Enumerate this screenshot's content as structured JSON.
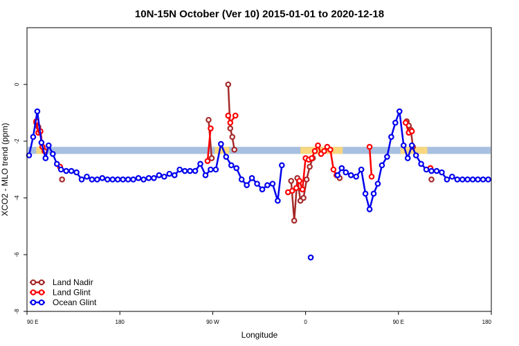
{
  "chart_data": {
    "type": "line",
    "title": "10N-15N October (Ver 10)   2015-01-01 to 2020-12-18",
    "xlabel": "Longitude",
    "ylabel": "XCO2 - MLO trend (ppm)",
    "xticks": [
      {
        "value": 90,
        "label": "90 E"
      },
      {
        "value": 180,
        "label": "180"
      },
      {
        "value": 270,
        "label": "90 W"
      },
      {
        "value": 360,
        "label": "0"
      },
      {
        "value": 450,
        "label": "90 E"
      },
      {
        "value": 540,
        "label": "180"
      }
    ],
    "yticks": [
      {
        "value": -8,
        "label": "-8"
      },
      {
        "value": -6,
        "label": "-6"
      },
      {
        "value": -4,
        "label": "-4"
      },
      {
        "value": -2,
        "label": "-2"
      },
      {
        "value": 0,
        "label": "0"
      }
    ],
    "xlim": [
      90,
      540
    ],
    "ylim": [
      -8,
      2
    ],
    "band": {
      "y_low": -2.45,
      "y_high": -2.2,
      "colors": {
        "ocean": "#a7bfe0",
        "land": "#f7d77f"
      }
    },
    "land_segments": [
      [
        99,
        107
      ],
      [
        272,
        286
      ],
      [
        355,
        396
      ],
      [
        452,
        478
      ]
    ],
    "legend": {
      "position": "bottom-left",
      "entries": [
        {
          "label": "Land Nadir",
          "color": "#a52a2a"
        },
        {
          "label": "Land Glint",
          "color": "#ff0000"
        },
        {
          "label": "Ocean Glint",
          "color": "#0000ee"
        }
      ]
    },
    "series": [
      {
        "name": "Land Nadir",
        "color": "#a52a2a",
        "segments": [
          [
            [
              99,
              -1.35
            ],
            [
              101,
              -1.5
            ],
            [
              103,
              -1.65
            ],
            [
              105,
              -2.2
            ]
          ],
          [
            [
              124,
              -3.35
            ]
          ],
          [
            [
              266,
              -1.25
            ],
            [
              269,
              -2.6
            ]
          ],
          [
            [
              285,
              0
            ],
            [
              287,
              -1.55
            ],
            [
              289,
              -1.85
            ],
            [
              291,
              -2.3
            ]
          ],
          [
            [
              346,
              -3.4
            ],
            [
              349,
              -4.8
            ],
            [
              352,
              -3.3
            ],
            [
              355,
              -4.1
            ],
            [
              358,
              -4.0
            ],
            [
              361,
              -3.35
            ],
            [
              364,
              -2.9
            ],
            [
              367,
              -2.6
            ]
          ],
          [
            [
              393,
              -3.3
            ]
          ],
          [
            [
              458,
              -1.3
            ],
            [
              460,
              -1.45
            ],
            [
              462,
              -1.6
            ],
            [
              464,
              -2.2
            ]
          ],
          [
            [
              482,
              -3.35
            ]
          ]
        ]
      },
      {
        "name": "Land Glint",
        "color": "#ff0000",
        "segments": [
          [
            [
              99,
              -1.3
            ],
            [
              101,
              -1.7
            ],
            [
              103,
              -1.65
            ],
            [
              105,
              -2.2
            ],
            [
              107,
              -2.35
            ]
          ],
          [
            [
              122,
              -2.9
            ]
          ],
          [
            [
              265,
              -2.7
            ],
            [
              268,
              -1.55
            ]
          ],
          [
            [
              285,
              -1.1
            ],
            [
              287,
              -1.35
            ],
            [
              292,
              -1.1
            ]
          ],
          [
            [
              343,
              -3.8
            ],
            [
              347,
              -3.75
            ],
            [
              351,
              -3.65
            ],
            [
              354,
              -3.4
            ],
            [
              357,
              -3.7
            ],
            [
              360,
              -2.6
            ],
            [
              363,
              -2.65
            ],
            [
              366,
              -2.6
            ],
            [
              369,
              -2.35
            ],
            [
              372,
              -2.15
            ],
            [
              375,
              -2.45
            ],
            [
              378,
              -2.35
            ],
            [
              381,
              -2.2
            ],
            [
              384,
              -2.3
            ],
            [
              387,
              -3.0
            ],
            [
              390,
              -3.2
            ]
          ],
          [
            [
              422,
              -2.2
            ],
            [
              424,
              -3.25
            ]
          ],
          [
            [
              457,
              -1.35
            ],
            [
              460,
              -1.7
            ],
            [
              463,
              -1.65
            ]
          ],
          [
            [
              481,
              -2.95
            ]
          ]
        ]
      },
      {
        "name": "Ocean Glint",
        "color": "#0000ee",
        "segments": [
          [
            [
              92,
              -2.5
            ],
            [
              96,
              -1.85
            ],
            [
              100,
              -0.95
            ],
            [
              104,
              -2.05
            ],
            [
              108,
              -2.6
            ],
            [
              111,
              -2.15
            ],
            [
              115,
              -2.45
            ],
            [
              119,
              -2.8
            ],
            [
              123,
              -3.0
            ],
            [
              128,
              -3.05
            ],
            [
              133,
              -3.05
            ],
            [
              138,
              -3.1
            ],
            [
              143,
              -3.35
            ],
            [
              148,
              -3.25
            ],
            [
              153,
              -3.35
            ],
            [
              158,
              -3.35
            ],
            [
              163,
              -3.3
            ],
            [
              168,
              -3.35
            ],
            [
              173,
              -3.35
            ],
            [
              178,
              -3.35
            ],
            [
              183,
              -3.35
            ],
            [
              188,
              -3.35
            ],
            [
              193,
              -3.35
            ],
            [
              198,
              -3.3
            ],
            [
              203,
              -3.35
            ],
            [
              208,
              -3.3
            ],
            [
              213,
              -3.3
            ],
            [
              218,
              -3.2
            ],
            [
              223,
              -3.25
            ],
            [
              228,
              -3.15
            ],
            [
              233,
              -3.2
            ],
            [
              238,
              -3.0
            ],
            [
              243,
              -3.05
            ],
            [
              248,
              -3.05
            ],
            [
              253,
              -3.05
            ],
            [
              258,
              -2.8
            ],
            [
              263,
              -3.2
            ],
            [
              268,
              -3.0
            ],
            [
              273,
              -3.0
            ],
            [
              278,
              -2.1
            ],
            [
              283,
              -2.55
            ],
            [
              288,
              -2.85
            ],
            [
              293,
              -2.95
            ],
            [
              298,
              -3.35
            ],
            [
              303,
              -3.55
            ],
            [
              308,
              -3.3
            ],
            [
              313,
              -3.5
            ],
            [
              318,
              -3.7
            ],
            [
              323,
              -3.55
            ],
            [
              328,
              -3.5
            ],
            [
              333,
              -4.1
            ],
            [
              337,
              -2.85
            ]
          ],
          [
            [
              365,
              -6.1
            ]
          ],
          [
            [
              391,
              -3.2
            ],
            [
              395,
              -2.95
            ],
            [
              399,
              -3.1
            ],
            [
              404,
              -3.2
            ],
            [
              409,
              -3.25
            ],
            [
              414,
              -3.0
            ],
            [
              418,
              -3.85
            ],
            [
              422,
              -4.4
            ],
            [
              426,
              -3.85
            ],
            [
              430,
              -3.5
            ],
            [
              434,
              -2.85
            ],
            [
              439,
              -2.55
            ],
            [
              443,
              -1.85
            ],
            [
              447,
              -1.35
            ],
            [
              451,
              -0.95
            ],
            [
              455,
              -2.15
            ],
            [
              459,
              -2.6
            ],
            [
              463,
              -2.15
            ],
            [
              467,
              -2.5
            ],
            [
              472,
              -2.8
            ],
            [
              477,
              -3.0
            ],
            [
              482,
              -3.05
            ],
            [
              487,
              -3.05
            ],
            [
              492,
              -3.1
            ],
            [
              497,
              -3.35
            ],
            [
              502,
              -3.25
            ],
            [
              507,
              -3.35
            ],
            [
              512,
              -3.35
            ],
            [
              517,
              -3.35
            ],
            [
              522,
              -3.35
            ],
            [
              527,
              -3.35
            ],
            [
              532,
              -3.35
            ],
            [
              537,
              -3.35
            ]
          ]
        ]
      }
    ]
  }
}
